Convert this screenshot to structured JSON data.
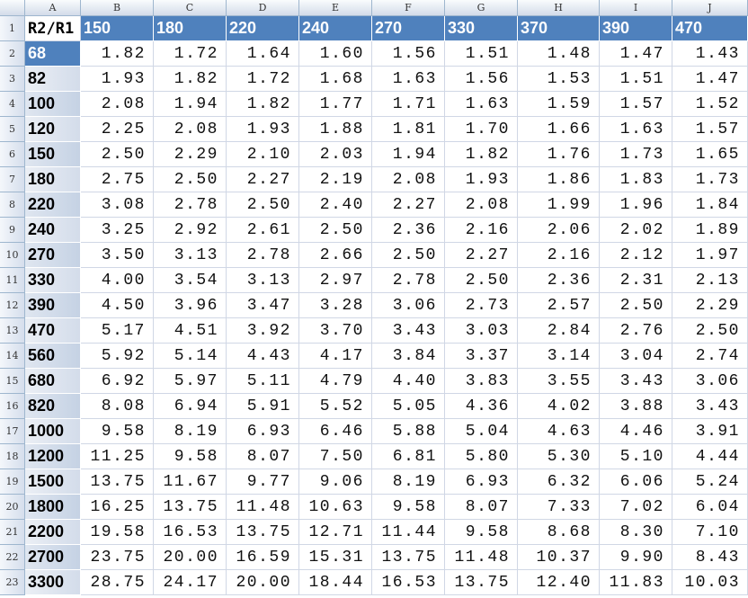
{
  "column_letters": [
    "A",
    "B",
    "C",
    "D",
    "E",
    "F",
    "G",
    "H",
    "I",
    "J"
  ],
  "row_numbers": [
    1,
    2,
    3,
    4,
    5,
    6,
    7,
    8,
    9,
    10,
    11,
    12,
    13,
    14,
    15,
    16,
    17,
    18,
    19,
    20,
    21,
    22,
    23
  ],
  "table": {
    "header": [
      "R2/R1",
      "150",
      "180",
      "220",
      "240",
      "270",
      "330",
      "370",
      "390",
      "470"
    ],
    "rows": [
      [
        "68",
        "1.82",
        "1.72",
        "1.64",
        "1.60",
        "1.56",
        "1.51",
        "1.48",
        "1.47",
        "1.43"
      ],
      [
        "82",
        "1.93",
        "1.82",
        "1.72",
        "1.68",
        "1.63",
        "1.56",
        "1.53",
        "1.51",
        "1.47"
      ],
      [
        "100",
        "2.08",
        "1.94",
        "1.82",
        "1.77",
        "1.71",
        "1.63",
        "1.59",
        "1.57",
        "1.52"
      ],
      [
        "120",
        "2.25",
        "2.08",
        "1.93",
        "1.88",
        "1.81",
        "1.70",
        "1.66",
        "1.63",
        "1.57"
      ],
      [
        "150",
        "2.50",
        "2.29",
        "2.10",
        "2.03",
        "1.94",
        "1.82",
        "1.76",
        "1.73",
        "1.65"
      ],
      [
        "180",
        "2.75",
        "2.50",
        "2.27",
        "2.19",
        "2.08",
        "1.93",
        "1.86",
        "1.83",
        "1.73"
      ],
      [
        "220",
        "3.08",
        "2.78",
        "2.50",
        "2.40",
        "2.27",
        "2.08",
        "1.99",
        "1.96",
        "1.84"
      ],
      [
        "240",
        "3.25",
        "2.92",
        "2.61",
        "2.50",
        "2.36",
        "2.16",
        "2.06",
        "2.02",
        "1.89"
      ],
      [
        "270",
        "3.50",
        "3.13",
        "2.78",
        "2.66",
        "2.50",
        "2.27",
        "2.16",
        "2.12",
        "1.97"
      ],
      [
        "330",
        "4.00",
        "3.54",
        "3.13",
        "2.97",
        "2.78",
        "2.50",
        "2.36",
        "2.31",
        "2.13"
      ],
      [
        "390",
        "4.50",
        "3.96",
        "3.47",
        "3.28",
        "3.06",
        "2.73",
        "2.57",
        "2.50",
        "2.29"
      ],
      [
        "470",
        "5.17",
        "4.51",
        "3.92",
        "3.70",
        "3.43",
        "3.03",
        "2.84",
        "2.76",
        "2.50"
      ],
      [
        "560",
        "5.92",
        "5.14",
        "4.43",
        "4.17",
        "3.84",
        "3.37",
        "3.14",
        "3.04",
        "2.74"
      ],
      [
        "680",
        "6.92",
        "5.97",
        "5.11",
        "4.79",
        "4.40",
        "3.83",
        "3.55",
        "3.43",
        "3.06"
      ],
      [
        "820",
        "8.08",
        "6.94",
        "5.91",
        "5.52",
        "5.05",
        "4.36",
        "4.02",
        "3.88",
        "3.43"
      ],
      [
        "1000",
        "9.58",
        "8.19",
        "6.93",
        "6.46",
        "5.88",
        "5.04",
        "4.63",
        "4.46",
        "3.91"
      ],
      [
        "1200",
        "11.25",
        "9.58",
        "8.07",
        "7.50",
        "6.81",
        "5.80",
        "5.30",
        "5.10",
        "4.44"
      ],
      [
        "1500",
        "13.75",
        "11.67",
        "9.77",
        "9.06",
        "8.19",
        "6.93",
        "6.32",
        "6.06",
        "5.24"
      ],
      [
        "1800",
        "16.25",
        "13.75",
        "11.48",
        "10.63",
        "9.58",
        "8.07",
        "7.33",
        "7.02",
        "6.04"
      ],
      [
        "2200",
        "19.58",
        "16.53",
        "13.75",
        "12.71",
        "11.44",
        "9.58",
        "8.68",
        "8.30",
        "7.10"
      ],
      [
        "2700",
        "23.75",
        "20.00",
        "16.59",
        "15.31",
        "13.75",
        "11.48",
        "10.37",
        "9.90",
        "8.43"
      ],
      [
        "3300",
        "28.75",
        "24.17",
        "20.00",
        "18.44",
        "16.53",
        "13.75",
        "12.40",
        "11.83",
        "10.03"
      ]
    ]
  }
}
